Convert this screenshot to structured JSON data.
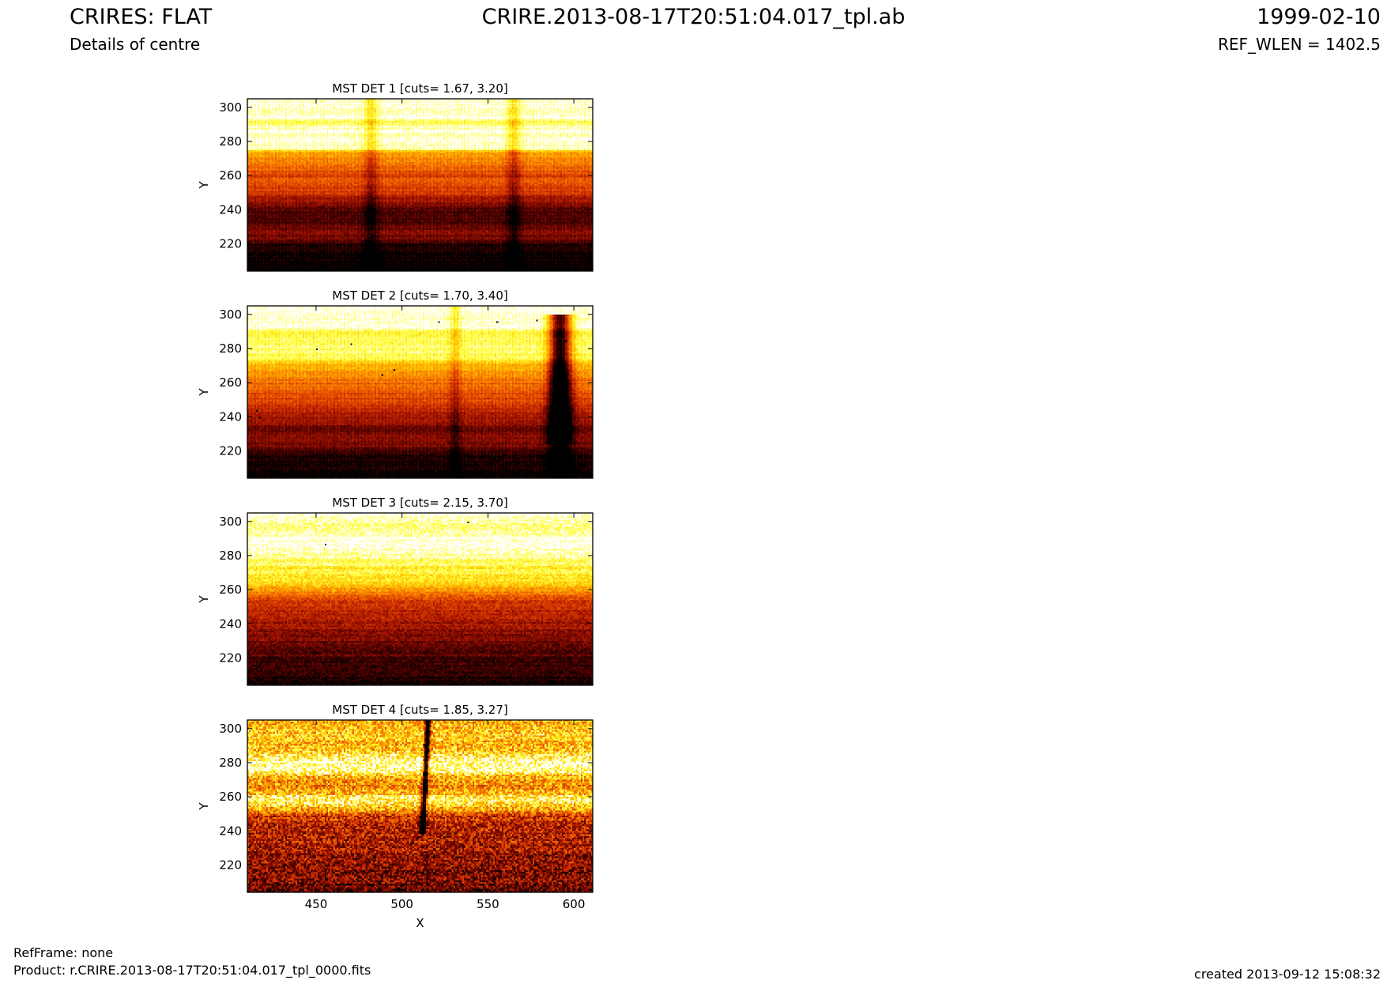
{
  "header": {
    "title": "CRIRES: FLAT",
    "subtitle": "Details of centre",
    "file": "CRIRE.2013-08-17T20:51:04.017_tpl.ab",
    "date": "1999-02-10",
    "ref_wlen": "REF_WLEN = 1402.5"
  },
  "footer": {
    "refframe": "RefFrame: none",
    "product": "Product: r.CRIRE.2013-08-17T20:51:04.017_tpl_0000.fits",
    "created": "created 2013-09-12 15:08:32"
  },
  "colors": {
    "colormap": [
      "#000000",
      "#4a0000",
      "#9a1000",
      "#d83a00",
      "#f77a00",
      "#ffc300",
      "#ffff40",
      "#ffffff"
    ]
  },
  "chart_data": [
    {
      "type": "heatmap",
      "title": "MST DET 1 [cuts= 1.67, 3.20]",
      "ylabel": "Y",
      "xlim": [
        410,
        611
      ],
      "ylim": [
        204,
        305
      ],
      "xticks": [
        450,
        500,
        550,
        600
      ],
      "yticks": [
        220,
        240,
        260,
        280,
        300
      ],
      "profile": [
        [
          204,
          0.02
        ],
        [
          214,
          0.05
        ],
        [
          220,
          0.08
        ],
        [
          222,
          0.2
        ],
        [
          227,
          0.27
        ],
        [
          232,
          0.18
        ],
        [
          237,
          0.14
        ],
        [
          241,
          0.22
        ],
        [
          245,
          0.32
        ],
        [
          250,
          0.43
        ],
        [
          255,
          0.5
        ],
        [
          260,
          0.47
        ],
        [
          265,
          0.56
        ],
        [
          270,
          0.63
        ],
        [
          274,
          0.7
        ],
        [
          276,
          0.98
        ],
        [
          288,
          0.99
        ],
        [
          291,
          0.85
        ],
        [
          293,
          0.99
        ],
        [
          305,
          1.0
        ]
      ],
      "vertical_features": [
        [
          482,
          4,
          -0.18
        ],
        [
          565,
          4,
          -0.18
        ]
      ],
      "bad_pixels": []
    },
    {
      "type": "heatmap",
      "title": "MST DET 2 [cuts= 1.70, 3.40]",
      "ylabel": "Y",
      "xlim": [
        410,
        611
      ],
      "ylim": [
        204,
        305
      ],
      "xticks": [
        450,
        500,
        550,
        600
      ],
      "yticks": [
        220,
        240,
        260,
        280,
        300
      ],
      "profile": [
        [
          204,
          0.03
        ],
        [
          214,
          0.06
        ],
        [
          219,
          0.1
        ],
        [
          222,
          0.22
        ],
        [
          228,
          0.3
        ],
        [
          233,
          0.22
        ],
        [
          238,
          0.3
        ],
        [
          243,
          0.38
        ],
        [
          248,
          0.45
        ],
        [
          253,
          0.5
        ],
        [
          258,
          0.56
        ],
        [
          263,
          0.6
        ],
        [
          268,
          0.66
        ],
        [
          272,
          0.76
        ],
        [
          275,
          0.9
        ],
        [
          285,
          0.92
        ],
        [
          290,
          0.83
        ],
        [
          292,
          0.98
        ],
        [
          305,
          1.0
        ]
      ],
      "vertical_features": [
        [
          531,
          3,
          -0.15
        ],
        [
          592,
          6,
          -0.85
        ]
      ],
      "bad_pixels": [
        [
          521,
          296
        ],
        [
          555,
          296
        ],
        [
          450,
          280
        ],
        [
          470,
          283
        ],
        [
          595,
          285
        ],
        [
          578,
          297
        ],
        [
          415,
          244
        ],
        [
          417,
          240
        ],
        [
          595,
          233
        ],
        [
          495,
          268
        ],
        [
          488,
          265
        ]
      ]
    },
    {
      "type": "heatmap",
      "title": "MST DET 3 [cuts= 2.15, 3.70]",
      "ylabel": "Y",
      "xlim": [
        410,
        611
      ],
      "ylim": [
        204,
        305
      ],
      "xticks": [
        450,
        500,
        550,
        600
      ],
      "yticks": [
        220,
        240,
        260,
        280,
        300
      ],
      "profile": [
        [
          204,
          0.04
        ],
        [
          212,
          0.08
        ],
        [
          220,
          0.14
        ],
        [
          228,
          0.2
        ],
        [
          236,
          0.28
        ],
        [
          244,
          0.33
        ],
        [
          250,
          0.38
        ],
        [
          256,
          0.5
        ],
        [
          260,
          0.62
        ],
        [
          264,
          0.75
        ],
        [
          268,
          0.82
        ],
        [
          272,
          0.82
        ],
        [
          277,
          0.88
        ],
        [
          282,
          0.96
        ],
        [
          290,
          0.98
        ],
        [
          294,
          0.9
        ],
        [
          299,
          0.95
        ],
        [
          305,
          0.98
        ]
      ],
      "vertical_features": [],
      "bad_pixels": [
        [
          538,
          300
        ],
        [
          455,
          287
        ]
      ]
    },
    {
      "type": "heatmap",
      "title": "MST DET 4 [cuts= 1.85, 3.27]",
      "xlabel": "X",
      "ylabel": "Y",
      "xlim": [
        410,
        611
      ],
      "ylim": [
        204,
        305
      ],
      "xticks": [
        450,
        500,
        550,
        600
      ],
      "yticks": [
        220,
        240,
        260,
        280,
        300
      ],
      "profile": [
        [
          204,
          0.18
        ],
        [
          214,
          0.24
        ],
        [
          224,
          0.28
        ],
        [
          234,
          0.33
        ],
        [
          242,
          0.36
        ],
        [
          249,
          0.42
        ],
        [
          252,
          0.65
        ],
        [
          258,
          0.9
        ],
        [
          262,
          0.72
        ],
        [
          266,
          0.6
        ],
        [
          272,
          0.68
        ],
        [
          275,
          0.95
        ],
        [
          282,
          0.92
        ],
        [
          287,
          0.74
        ],
        [
          292,
          0.68
        ],
        [
          297,
          0.74
        ],
        [
          305,
          0.68
        ]
      ],
      "vertical_features": [
        [
          512,
          1.5,
          -1.0
        ]
      ],
      "bad_pixels": []
    }
  ]
}
